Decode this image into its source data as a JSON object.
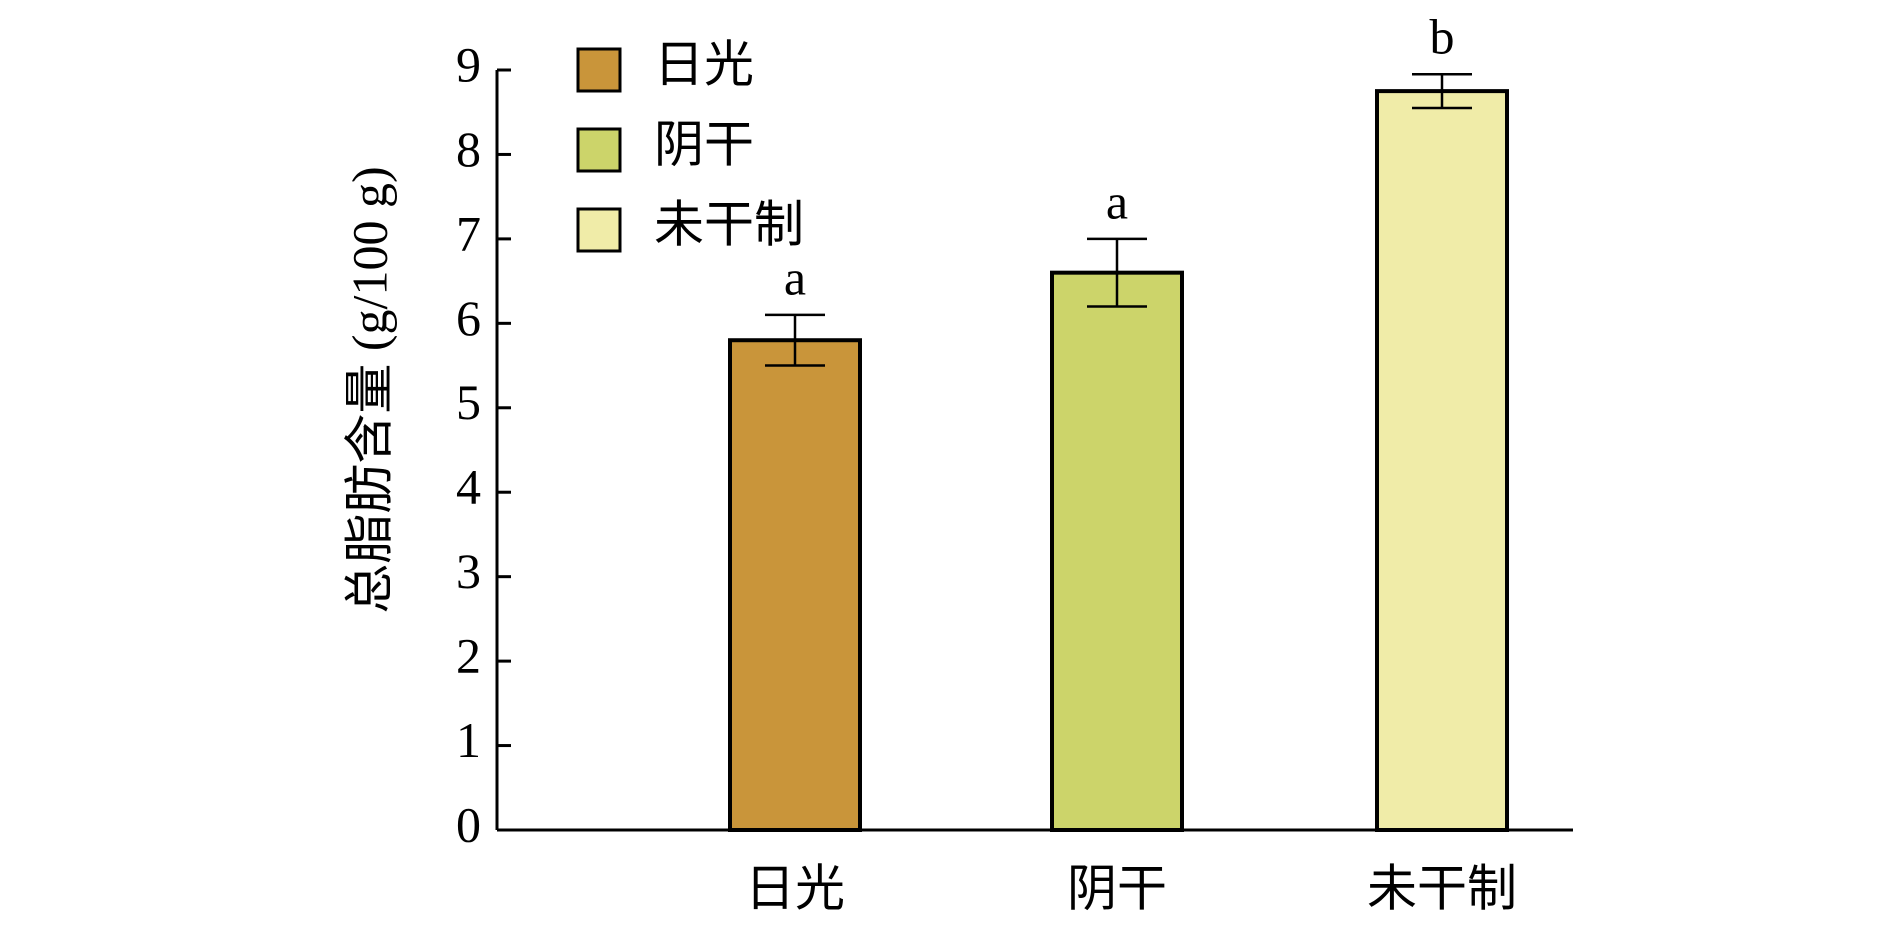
{
  "chart_data": {
    "type": "bar",
    "y_label": "总脂肪含量 (g/100 g)",
    "categories": [
      "日光",
      "阴干",
      "未干制"
    ],
    "values": [
      5.8,
      6.6,
      8.75
    ],
    "errors": [
      0.3,
      0.4,
      0.2
    ],
    "annotations": [
      "a",
      "a",
      "b"
    ],
    "colors": [
      "#c9953a",
      "#ccd46a",
      "#f0eca8"
    ],
    "ylim": [
      0,
      9
    ],
    "yticks": [
      0,
      1,
      2,
      3,
      4,
      5,
      6,
      7,
      8,
      9
    ],
    "legend": "upper left",
    "grid": false
  }
}
